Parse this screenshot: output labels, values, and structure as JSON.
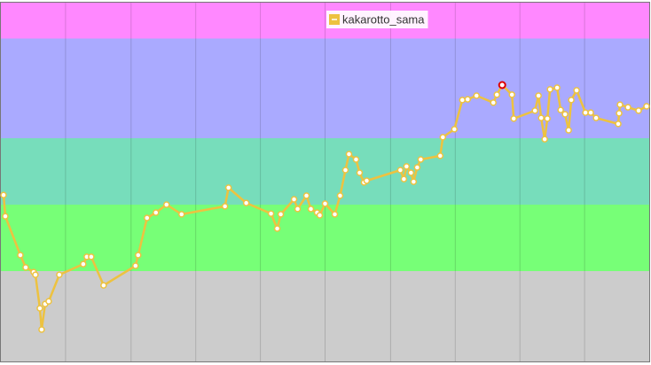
{
  "chart_data": {
    "type": "line",
    "legend": "top",
    "series": [
      {
        "name": "kakarotto_sama",
        "color": "#edc240",
        "highlight_color": "#dd0000",
        "highlight_index": 57,
        "x": [
          3,
          5,
          22,
          28,
          37,
          39,
          44,
          46,
          50,
          54,
          66,
          93,
          97,
          102,
          116,
          152,
          155,
          165,
          175,
          187,
          204,
          253,
          257,
          277,
          305,
          312,
          316,
          331,
          335,
          345,
          350,
          357,
          360,
          366,
          377,
          383,
          389,
          393,
          401,
          405,
          410,
          413,
          451,
          455,
          458,
          463,
          466,
          470,
          474,
          496,
          499,
          512,
          521,
          527,
          537,
          556,
          560,
          566,
          577,
          579,
          603,
          607,
          610,
          614,
          617,
          620,
          628,
          632,
          637,
          641,
          644,
          650,
          660,
          666,
          672,
          697,
          698,
          699,
          708,
          720,
          729
        ],
        "values": [
          1429,
          1365,
          1248,
          1211,
          1197,
          1189,
          1088,
          1024,
          1101,
          1109,
          1189,
          1221,
          1243,
          1243,
          1157,
          1216,
          1248,
          1360,
          1376,
          1400,
          1371,
          1395,
          1451,
          1405,
          1373,
          1328,
          1371,
          1416,
          1387,
          1427,
          1387,
          1376,
          1368,
          1403,
          1371,
          1427,
          1504,
          1552,
          1536,
          1496,
          1467,
          1472,
          1504,
          1477,
          1515,
          1496,
          1469,
          1512,
          1536,
          1547,
          1603,
          1627,
          1715,
          1717,
          1728,
          1707,
          1731,
          1760,
          1731,
          1659,
          1683,
          1728,
          1661,
          1597,
          1659,
          1747,
          1752,
          1685,
          1672,
          1624,
          1715,
          1744,
          1677,
          1677,
          1661,
          1643,
          1675,
          1701,
          1693,
          1683,
          1696
        ]
      }
    ],
    "xlim": [
      0,
      732
    ],
    "xticks": [
      73,
      147,
      220,
      293,
      366,
      440,
      513,
      586,
      659
    ],
    "ylim": [
      928,
      2008
    ],
    "bands": [
      {
        "from": 928,
        "to": 1200,
        "color": "#cccccc"
      },
      {
        "from": 1200,
        "to": 1400,
        "color": "#77ff77"
      },
      {
        "from": 1400,
        "to": 1600,
        "color": "#77ddbb"
      },
      {
        "from": 1600,
        "to": 1900,
        "color": "#aaaaff"
      },
      {
        "from": 1900,
        "to": 2008,
        "color": "#ff88ff"
      }
    ],
    "grid": true
  }
}
